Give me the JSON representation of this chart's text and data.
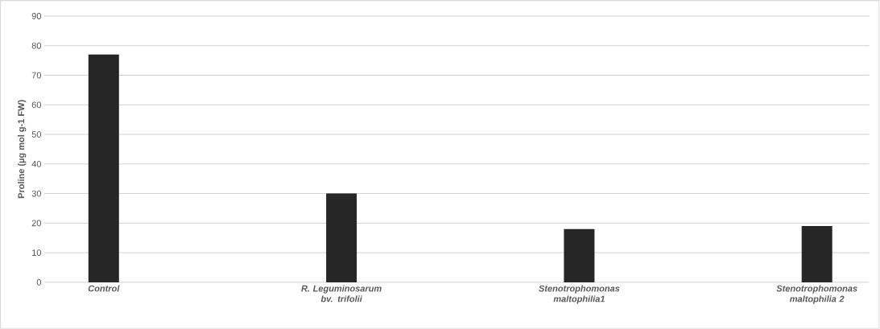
{
  "chart_data": {
    "type": "bar",
    "ylabel": "Proline (µg mol g-1 FW)",
    "categories": [
      "Control",
      "R. Leguminosarum bv. trifolii",
      "Stenotrophomonas maltophilia1",
      "Stenotrophomonas maltophilia 2"
    ],
    "values": [
      77,
      30,
      18,
      19
    ],
    "colors": [
      "#262626",
      "#262626",
      "#262626",
      "#262626"
    ],
    "ylim": [
      0,
      90
    ],
    "yticks": [
      0,
      10,
      20,
      30,
      40,
      50,
      60,
      70,
      80,
      90
    ],
    "grid": "y"
  }
}
